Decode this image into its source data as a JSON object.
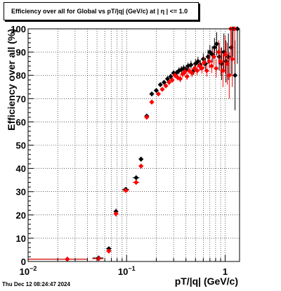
{
  "chart_data": {
    "type": "scatter",
    "title": "Efficiency over all for Global vs pT/|q| (GeV/c) at |  η  | <= 1.0",
    "xlabel": "pT/|q| (GeV/c)",
    "ylabel": "Efficiency over all (%)",
    "x_scale": "log",
    "xlim": [
      0.01,
      1.4
    ],
    "ylim": [
      0,
      100
    ],
    "grid": true,
    "y_ticks": [
      "0",
      "10",
      "20",
      "30",
      "40",
      "50",
      "60",
      "70",
      "80",
      "90",
      "100"
    ],
    "x_ticks": [
      {
        "value": 0.01,
        "base": "10",
        "exp": "−2"
      },
      {
        "value": 0.1,
        "base": "10",
        "exp": "−1"
      },
      {
        "value": 1,
        "base": "1",
        "exp": ""
      }
    ],
    "series": [
      {
        "color": "#000000",
        "points": [
          {
            "x": 0.025,
            "y": 1.0,
            "xerr": [
              0.01,
              0.04
            ],
            "yerr": 0.3
          },
          {
            "x": 0.052,
            "y": 1.5,
            "xerr": [
              0.045,
              0.058
            ],
            "yerr": 0.4
          },
          {
            "x": 0.066,
            "y": 5.5,
            "xerr": [
              0.062,
              0.07
            ],
            "yerr": 1.0
          },
          {
            "x": 0.078,
            "y": 21.5,
            "xerr": [
              0.074,
              0.082
            ],
            "yerr": 1.2
          },
          {
            "x": 0.098,
            "y": 31.0,
            "xerr": [
              0.09,
              0.106
            ],
            "yerr": 1.0
          },
          {
            "x": 0.125,
            "y": 36.0,
            "xerr": [
              0.115,
              0.135
            ],
            "yerr": 1.0
          },
          {
            "x": 0.14,
            "y": 44.0,
            "xerr": [
              0.135,
              0.145
            ],
            "yerr": 1.0
          },
          {
            "x": 0.16,
            "y": 62.5,
            "xerr": [
              0.155,
              0.165
            ],
            "yerr": 1.0
          },
          {
            "x": 0.18,
            "y": 72.0,
            "xerr": [
              0.175,
              0.185
            ],
            "yerr": 1.0
          },
          {
            "x": 0.2,
            "y": 73.5,
            "yerr": 1.0
          },
          {
            "x": 0.22,
            "y": 76.0,
            "yerr": 1.0
          },
          {
            "x": 0.24,
            "y": 77.0,
            "yerr": 1.0
          },
          {
            "x": 0.26,
            "y": 78.5,
            "yerr": 1.2
          },
          {
            "x": 0.28,
            "y": 79.5,
            "yerr": 1.2
          },
          {
            "x": 0.3,
            "y": 81.0,
            "yerr": 1.2
          },
          {
            "x": 0.32,
            "y": 81.0,
            "yerr": 1.2
          },
          {
            "x": 0.34,
            "y": 82.0,
            "yerr": 1.5
          },
          {
            "x": 0.36,
            "y": 82.5,
            "yerr": 1.5
          },
          {
            "x": 0.38,
            "y": 83.0,
            "yerr": 1.5
          },
          {
            "x": 0.4,
            "y": 82.5,
            "yerr": 1.5
          },
          {
            "x": 0.42,
            "y": 84.0,
            "yerr": 1.5
          },
          {
            "x": 0.45,
            "y": 84.5,
            "yerr": 1.8
          },
          {
            "x": 0.48,
            "y": 82.0,
            "yerr": 1.8
          },
          {
            "x": 0.5,
            "y": 85.0,
            "yerr": 2.0
          },
          {
            "x": 0.53,
            "y": 86.0,
            "yerr": 2.0
          },
          {
            "x": 0.56,
            "y": 84.5,
            "yerr": 2.2
          },
          {
            "x": 0.6,
            "y": 87.0,
            "yerr": 2.5
          },
          {
            "x": 0.63,
            "y": 85.0,
            "yerr": 2.5
          },
          {
            "x": 0.67,
            "y": 88.0,
            "yerr": 3.0
          },
          {
            "x": 0.7,
            "y": 90.0,
            "yerr": 3.0
          },
          {
            "x": 0.74,
            "y": 89.0,
            "yerr": 3.5
          },
          {
            "x": 0.78,
            "y": 92.0,
            "yerr": 4.0
          },
          {
            "x": 0.82,
            "y": 93.5,
            "yerr": 5.0
          },
          {
            "x": 0.87,
            "y": 88.0,
            "yerr": 6.0
          },
          {
            "x": 0.92,
            "y": 85.0,
            "yerr": 7.0
          },
          {
            "x": 0.97,
            "y": 90.0,
            "yerr": 8.0
          },
          {
            "x": 1.02,
            "y": 86.0,
            "yerr": 9.0
          },
          {
            "x": 1.08,
            "y": 88.0,
            "yerr": 10.0
          },
          {
            "x": 1.15,
            "y": 92.0,
            "yerr": 12.0
          },
          {
            "x": 1.2,
            "y": 100.0,
            "yerr": 12.0
          },
          {
            "x": 1.26,
            "y": 80.0,
            "yerr": 15.0
          },
          {
            "x": 1.33,
            "y": 100.0,
            "yerr": 15.0
          }
        ]
      },
      {
        "color": "#ff0000",
        "points": [
          {
            "x": 0.025,
            "y": 1.0,
            "xerr": [
              0.01,
              0.04
            ],
            "yerr": 0.3
          },
          {
            "x": 0.052,
            "y": 1.2,
            "xerr": [
              0.045,
              0.058
            ],
            "yerr": 0.4
          },
          {
            "x": 0.066,
            "y": 4.5,
            "xerr": [
              0.062,
              0.07
            ],
            "yerr": 1.0
          },
          {
            "x": 0.078,
            "y": 20.5,
            "xerr": [
              0.074,
              0.082
            ],
            "yerr": 1.2
          },
          {
            "x": 0.098,
            "y": 30.5,
            "xerr": [
              0.09,
              0.106
            ],
            "yerr": 1.0
          },
          {
            "x": 0.125,
            "y": 34.0,
            "xerr": [
              0.115,
              0.135
            ],
            "yerr": 1.0
          },
          {
            "x": 0.14,
            "y": 41.0,
            "xerr": [
              0.135,
              0.145
            ],
            "yerr": 1.0
          },
          {
            "x": 0.16,
            "y": 62.0,
            "xerr": [
              0.155,
              0.165
            ],
            "yerr": 1.0
          },
          {
            "x": 0.18,
            "y": 68.5,
            "xerr": [
              0.175,
              0.185
            ],
            "yerr": 1.0
          },
          {
            "x": 0.21,
            "y": 72.0,
            "yerr": 1.0
          },
          {
            "x": 0.23,
            "y": 74.0,
            "yerr": 1.0
          },
          {
            "x": 0.25,
            "y": 75.5,
            "yerr": 1.0
          },
          {
            "x": 0.27,
            "y": 77.0,
            "yerr": 1.2
          },
          {
            "x": 0.29,
            "y": 78.0,
            "yerr": 1.2
          },
          {
            "x": 0.31,
            "y": 80.0,
            "yerr": 1.2
          },
          {
            "x": 0.33,
            "y": 79.0,
            "yerr": 1.2
          },
          {
            "x": 0.35,
            "y": 78.5,
            "yerr": 1.5
          },
          {
            "x": 0.37,
            "y": 80.5,
            "yerr": 1.5
          },
          {
            "x": 0.39,
            "y": 81.5,
            "yerr": 1.5
          },
          {
            "x": 0.41,
            "y": 79.5,
            "yerr": 1.5
          },
          {
            "x": 0.43,
            "y": 82.0,
            "yerr": 1.5
          },
          {
            "x": 0.46,
            "y": 81.0,
            "yerr": 1.8
          },
          {
            "x": 0.49,
            "y": 83.0,
            "yerr": 1.8
          },
          {
            "x": 0.52,
            "y": 82.0,
            "yerr": 2.0
          },
          {
            "x": 0.55,
            "y": 84.0,
            "yerr": 2.0
          },
          {
            "x": 0.58,
            "y": 83.0,
            "yerr": 2.2
          },
          {
            "x": 0.61,
            "y": 85.5,
            "yerr": 2.5
          },
          {
            "x": 0.65,
            "y": 82.0,
            "yerr": 2.5
          },
          {
            "x": 0.69,
            "y": 86.0,
            "yerr": 3.0
          },
          {
            "x": 0.73,
            "y": 84.0,
            "yerr": 3.0
          },
          {
            "x": 0.77,
            "y": 88.0,
            "yerr": 3.5
          },
          {
            "x": 0.81,
            "y": 83.0,
            "yerr": 4.0
          },
          {
            "x": 0.86,
            "y": 90.0,
            "yerr": 5.0
          },
          {
            "x": 0.9,
            "y": 86.0,
            "yerr": 6.0
          },
          {
            "x": 0.95,
            "y": 82.0,
            "yerr": 7.0
          },
          {
            "x": 1.0,
            "y": 89.0,
            "yerr": 8.0
          },
          {
            "x": 1.05,
            "y": 85.0,
            "yerr": 9.0
          },
          {
            "x": 1.1,
            "y": 80.0,
            "yerr": 10.0
          },
          {
            "x": 1.14,
            "y": 100.0,
            "yerr": 12.0
          },
          {
            "x": 1.18,
            "y": 87.0,
            "yerr": 12.0
          },
          {
            "x": 1.25,
            "y": 100.0,
            "yerr": 15.0
          }
        ]
      }
    ]
  },
  "timestamp": "Thu Dec 12 08:24:47 2024"
}
